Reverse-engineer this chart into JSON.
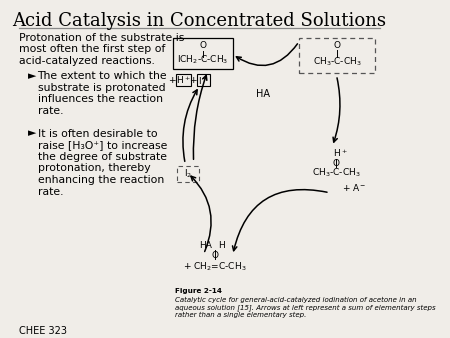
{
  "title": "Acid Catalysis in Concentrated Solutions",
  "title_fontsize": 13,
  "background_color": "#f0ede8",
  "text_color": "#000000",
  "body_text_1": "Protonation of the substrate is\nmost often the first step of\nacid-catalyzed reactions.",
  "bullet_1_arrow": "►",
  "bullet_1_text": "The extent to which the\nsubstrate is protonated\ninfluences the reaction\nrate.",
  "bullet_2_arrow": "►",
  "bullet_2_text": "It is often desirable to\nraise [H₃O⁺] to increase\nthe degree of substrate\nprotonation, thereby\nenhancing the reaction\nrate.",
  "footer_text": "CHEE 323",
  "figure_caption_bold": "Figure 2-14",
  "figure_caption": "Catalytic cycle for general-acid-catalyzed iodination of acetone in an\naqueous solution [15]. Arrows at left represent a sum of elementary steps\nrather than a single elementary step."
}
